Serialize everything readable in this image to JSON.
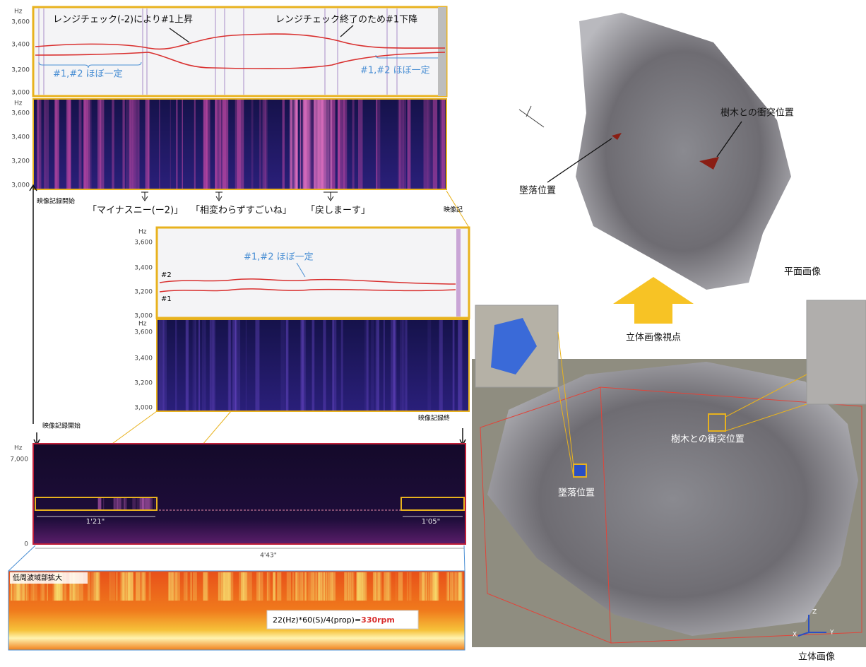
{
  "top_panel": {
    "unit": "Hz",
    "ticks": [
      "3,600",
      "3,400",
      "3,200",
      "3,000"
    ],
    "annotation_rise": "レンジチェック(-2)により#1上昇",
    "annotation_fall": "レンジチェック終了のため#1下降",
    "note_left": "#1,#2 ほぼ一定",
    "note_right": "#1,#2 ほぼ一定"
  },
  "top_spectrogram": {
    "unit": "Hz",
    "ticks": [
      "3,600",
      "3,400",
      "3,200",
      "3,000"
    ]
  },
  "timeline": {
    "start": "映像記録開始",
    "quote_1": "「マイナスニー(ー2)」",
    "quote_2": "「相変わらずすごいね」",
    "quote_3": "「戻しまーす」",
    "end": "映像記"
  },
  "middle_panel": {
    "unit": "Hz",
    "ticks": [
      "3,600",
      "3,400",
      "3,200",
      "3,000"
    ],
    "note": "#1,#2 ほぼ一定",
    "line_2": "#2",
    "line_1": "#1"
  },
  "middle_spectrogram": {
    "unit": "Hz",
    "ticks": [
      "3,600",
      "3,400",
      "3,200",
      "3,000"
    ]
  },
  "full_spectrogram": {
    "start": "映像記録開始",
    "end": "映像記録終",
    "unit": "Hz",
    "ticks": [
      "7,000",
      "0"
    ],
    "span_left": "1'21\"",
    "span_right": "1'05\"",
    "total": "4'43\""
  },
  "low_freq": {
    "title": "低周波域部拡大",
    "formula": "22(Hz)*60(S)/4(prop)=",
    "result": "330rpm"
  },
  "plan_view": {
    "collision": "樹木との衝突位置",
    "crash": "墜落位置",
    "caption": "平面画像"
  },
  "viewpoint": "立体画像視点",
  "solid_view": {
    "collision": "樹木との衝突位置",
    "crash": "墜落位置",
    "caption": "立体画像",
    "axis_z": "Z",
    "axis_x": "X",
    "axis_y": "Y"
  }
}
